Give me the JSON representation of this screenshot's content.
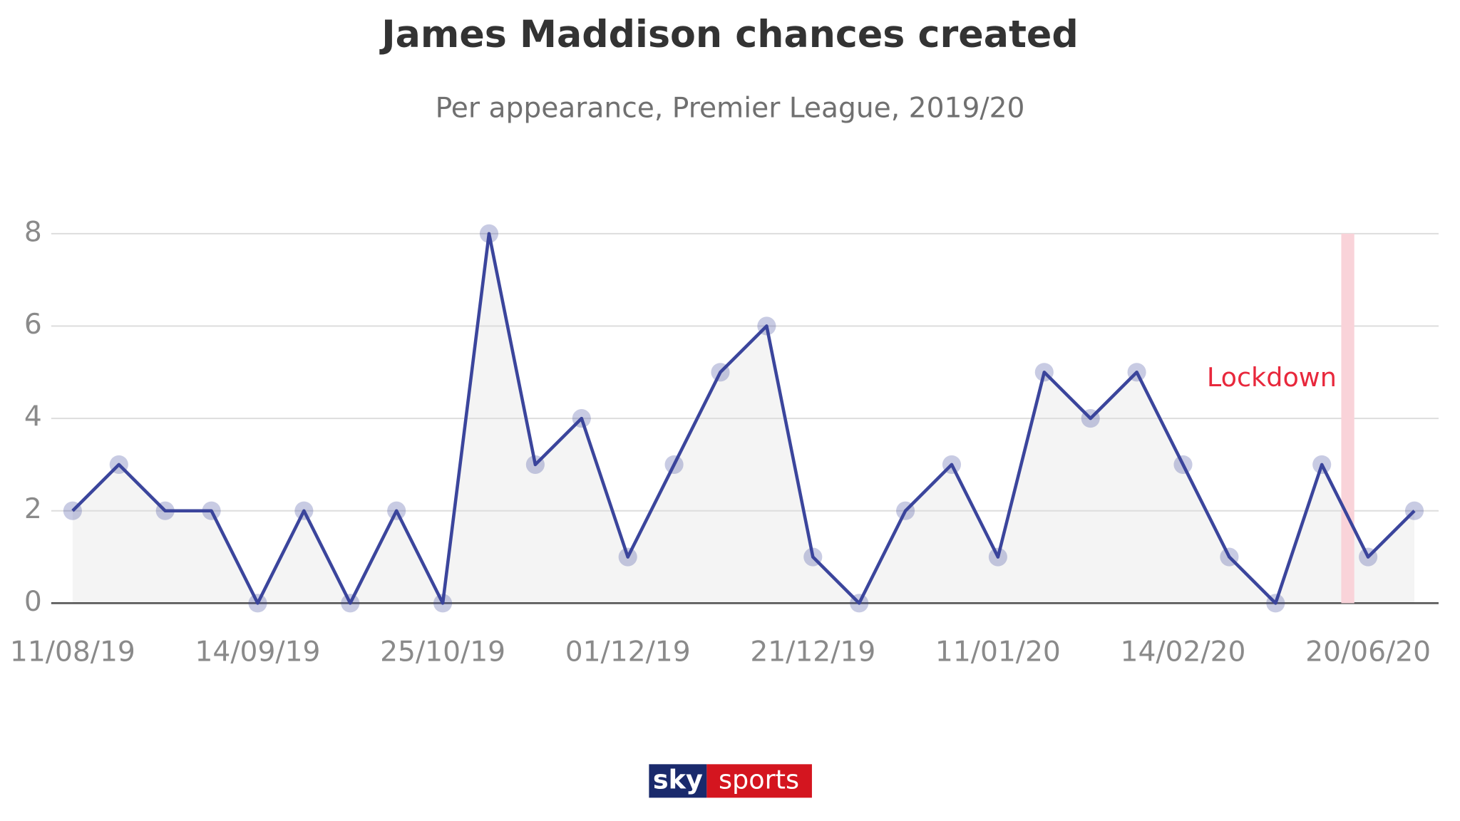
{
  "chart_data": {
    "type": "line",
    "title": "James Maddison chances created",
    "subtitle": "Per appearance, Premier League, 2019/20",
    "categories": [
      "11/08/19",
      null,
      null,
      null,
      "14/09/19",
      null,
      null,
      null,
      "25/10/19",
      null,
      null,
      null,
      "01/12/19",
      null,
      null,
      null,
      "21/12/19",
      null,
      null,
      null,
      "11/01/20",
      null,
      null,
      null,
      "14/02/20",
      null,
      null,
      null,
      "20/06/20",
      null
    ],
    "series": [
      {
        "name": "Chances created",
        "color": "#3b459c",
        "values": [
          2,
          3,
          2,
          2,
          0,
          2,
          0,
          2,
          0,
          8,
          3,
          4,
          1,
          3,
          5,
          6,
          1,
          0,
          2,
          3,
          1,
          5,
          4,
          5,
          3,
          1,
          0,
          3,
          1,
          2
        ]
      }
    ],
    "ylim": [
      0,
      8
    ],
    "yticks": [
      0,
      2,
      4,
      6,
      8
    ],
    "grid": true,
    "annotations": [
      {
        "text": "Lockdown",
        "color": "#e8283c"
      }
    ],
    "logo": {
      "sky": "sky",
      "sports": "sports"
    }
  }
}
